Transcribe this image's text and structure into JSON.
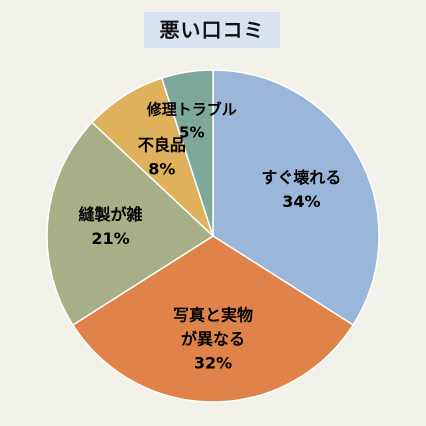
{
  "chart_data": {
    "type": "pie",
    "title": "悪い口コミ",
    "start_angle_deg": 0,
    "direction": "clockwise",
    "slices": [
      {
        "label_lines": [
          "すぐ壊れる"
        ],
        "value": 34,
        "pct_label": "34%",
        "color": "#9ab6d8"
      },
      {
        "label_lines": [
          "写真と実物",
          "が異なる"
        ],
        "value": 32,
        "pct_label": "32%",
        "color": "#e0834a"
      },
      {
        "label_lines": [
          "縫製が雑"
        ],
        "value": 21,
        "pct_label": "21%",
        "color": "#a8ae86"
      },
      {
        "label_lines": [
          "不良品"
        ],
        "value": 8,
        "pct_label": "8%",
        "color": "#deb25c"
      },
      {
        "label_lines": [
          "修理トラブル"
        ],
        "value": 5,
        "pct_label": "5%",
        "color": "#7fa89c"
      }
    ],
    "legend": "none"
  }
}
